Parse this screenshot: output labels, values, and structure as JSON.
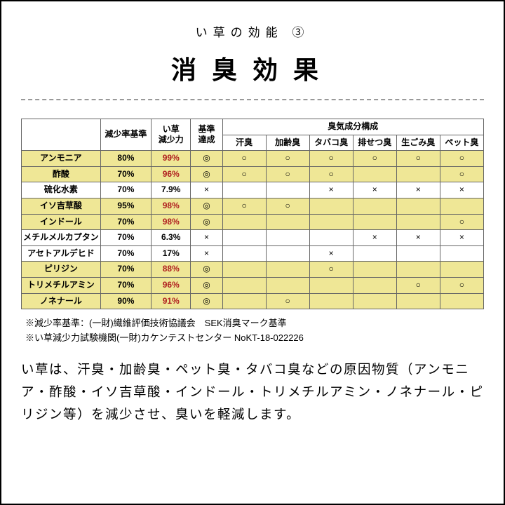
{
  "header": {
    "subtitle": "い草の効能 ③",
    "title": "消臭効果"
  },
  "table": {
    "colors": {
      "highlight_bg": "#efe796",
      "border": "#666666",
      "red_text": "#b02020",
      "text": "#000000",
      "bg": "#ffffff"
    },
    "header_row1": {
      "c1": "",
      "c2": "減少率基準",
      "c3": "い草\n減少力",
      "c4": "基準\n達成",
      "group": "臭気成分構成"
    },
    "header_row2": {
      "s1": "汗臭",
      "s2": "加齢臭",
      "s3": "タバコ臭",
      "s4": "排せつ臭",
      "s5": "生ごみ臭",
      "s6": "ペット臭"
    },
    "rows": [
      {
        "hl": true,
        "name": "アンモニア",
        "std": "80%",
        "red": "99%",
        "ach": "◎",
        "m": [
          "○",
          "○",
          "○",
          "○",
          "○",
          "○"
        ]
      },
      {
        "hl": true,
        "name": "酢酸",
        "std": "70%",
        "red": "96%",
        "ach": "◎",
        "m": [
          "○",
          "○",
          "○",
          "",
          "",
          "○"
        ]
      },
      {
        "hl": false,
        "name": "硫化水素",
        "std": "70%",
        "red": "7.9%",
        "ach": "×",
        "m": [
          "",
          "",
          "×",
          "×",
          "×",
          "×"
        ]
      },
      {
        "hl": true,
        "name": "イソ吉草酸",
        "std": "95%",
        "red": "98%",
        "ach": "◎",
        "m": [
          "○",
          "○",
          "",
          "",
          "",
          ""
        ]
      },
      {
        "hl": true,
        "name": "インドール",
        "std": "70%",
        "red": "98%",
        "ach": "◎",
        "m": [
          "",
          "",
          "",
          "",
          "",
          "○"
        ]
      },
      {
        "hl": false,
        "name": "メチルメルカプタン",
        "std": "70%",
        "red": "6.3%",
        "ach": "×",
        "m": [
          "",
          "",
          "",
          "×",
          "×",
          "×"
        ]
      },
      {
        "hl": false,
        "name": "アセトアルデヒド",
        "std": "70%",
        "red": "17%",
        "ach": "×",
        "m": [
          "",
          "",
          "×",
          "",
          "",
          ""
        ]
      },
      {
        "hl": true,
        "name": "ピリジン",
        "std": "70%",
        "red": "88%",
        "ach": "◎",
        "m": [
          "",
          "",
          "○",
          "",
          "",
          ""
        ]
      },
      {
        "hl": true,
        "name": "トリメチルアミン",
        "std": "70%",
        "red": "96%",
        "ach": "◎",
        "m": [
          "",
          "",
          "",
          "",
          "○",
          "○"
        ]
      },
      {
        "hl": true,
        "name": "ノネナール",
        "std": "90%",
        "red": "91%",
        "ach": "◎",
        "m": [
          "",
          "○",
          "",
          "",
          "",
          ""
        ]
      }
    ]
  },
  "notes": {
    "n1": "※減少率基準：(一財)繊維評価技術協議会　SEK消臭マーク基準",
    "n2": "※い草減少力試験機関(一財)カケンテストセンター NoKT-18-022226"
  },
  "description": "い草は、汗臭・加齢臭・ペット臭・タバコ臭などの原因物質（アンモニア・酢酸・イソ吉草酸・インドール・トリメチルアミン・ノネナール・ピリジン等）を減少させ、臭いを軽減します。"
}
